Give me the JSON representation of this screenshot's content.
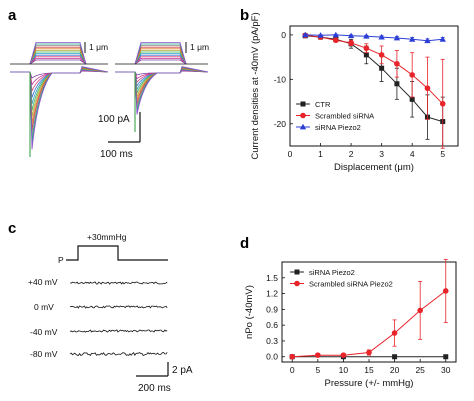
{
  "panel_labels": {
    "a": "a",
    "b": "b",
    "c": "c",
    "d": "d"
  },
  "panel_a": {
    "stim_labels": [
      "1 μm",
      "1 μm"
    ],
    "scale_current": "100 pA",
    "scale_time": "100 ms"
  },
  "panel_c": {
    "stim_label": "+30mmHg",
    "p_label": "P",
    "voltages": [
      "+40 mV",
      "0 mV",
      "-40 mV",
      "-80 mV"
    ],
    "scale_current": "2 pA",
    "scale_time": "200 ms"
  },
  "colors": {
    "ctr": "#222222",
    "scrambled": "#e8232a",
    "piezo2": "#2b3fd6"
  },
  "chart_data": [
    {
      "id": "b",
      "type": "line",
      "xlabel": "Displacement (μm)",
      "ylabel": "Current densities at -40mV (pA/pF)",
      "xlim": [
        0,
        5.5
      ],
      "ylim": [
        -25,
        2
      ],
      "xticks": [
        0,
        1,
        2,
        3,
        4,
        5
      ],
      "yticks": [
        0,
        -10,
        -20
      ],
      "x": [
        0.5,
        1.0,
        1.5,
        2.0,
        2.5,
        3.0,
        3.5,
        4.0,
        4.5,
        5.0
      ],
      "series": [
        {
          "name": "CTR",
          "marker": "square",
          "color": "#222222",
          "values": [
            -0.2,
            -0.5,
            -1.0,
            -2.0,
            -4.5,
            -7.5,
            -11.0,
            -14.5,
            -18.5,
            -19.5
          ],
          "errors": [
            0.2,
            0.3,
            0.5,
            1.0,
            2.0,
            3.0,
            3.5,
            4.0,
            5.0,
            5.5
          ]
        },
        {
          "name": "Scrambled siRNA",
          "marker": "circle",
          "color": "#e8232a",
          "values": [
            -0.1,
            -0.5,
            -1.2,
            -1.8,
            -3.0,
            -4.5,
            -6.5,
            -9.0,
            -12.0,
            -15.5
          ],
          "errors": [
            0.2,
            0.3,
            0.4,
            0.6,
            1.0,
            2.0,
            3.0,
            5.0,
            7.0,
            10.0
          ]
        },
        {
          "name": "siRNA Piezo2",
          "marker": "triangle",
          "color": "#2b3fd6",
          "values": [
            0.0,
            -0.1,
            0.0,
            -0.2,
            -0.3,
            -0.5,
            -0.7,
            -1.0,
            -1.3,
            -1.0
          ],
          "errors": [
            0.1,
            0.1,
            0.1,
            0.2,
            0.2,
            0.3,
            0.3,
            0.4,
            0.4,
            0.4
          ]
        }
      ],
      "legend": "bottom-left"
    },
    {
      "id": "d",
      "type": "line",
      "xlabel": "Pressure (+/- mmHg)",
      "ylabel": "nPo (-40mV)",
      "xlim": [
        -2,
        32
      ],
      "ylim": [
        -0.1,
        1.8
      ],
      "xticks": [
        0,
        5,
        10,
        15,
        20,
        25,
        30
      ],
      "yticks": [
        0.0,
        0.3,
        0.6,
        0.9,
        1.2,
        1.5
      ],
      "series": [
        {
          "name": "siRNA Piezo2",
          "marker": "square",
          "color": "#222222",
          "x": [
            0,
            10,
            20,
            30
          ],
          "values": [
            0.0,
            0.0,
            0.0,
            0.0
          ],
          "errors": [
            0,
            0,
            0,
            0
          ]
        },
        {
          "name": "Scrambled siRNA Piezo2",
          "marker": "circle",
          "color": "#e8232a",
          "x": [
            0,
            5,
            10,
            15,
            20,
            25,
            30
          ],
          "values": [
            0.0,
            0.03,
            0.03,
            0.08,
            0.45,
            0.88,
            1.25
          ],
          "errors": [
            0.02,
            0.03,
            0.03,
            0.05,
            0.25,
            0.55,
            0.6
          ]
        }
      ],
      "legend": "top-left"
    }
  ]
}
